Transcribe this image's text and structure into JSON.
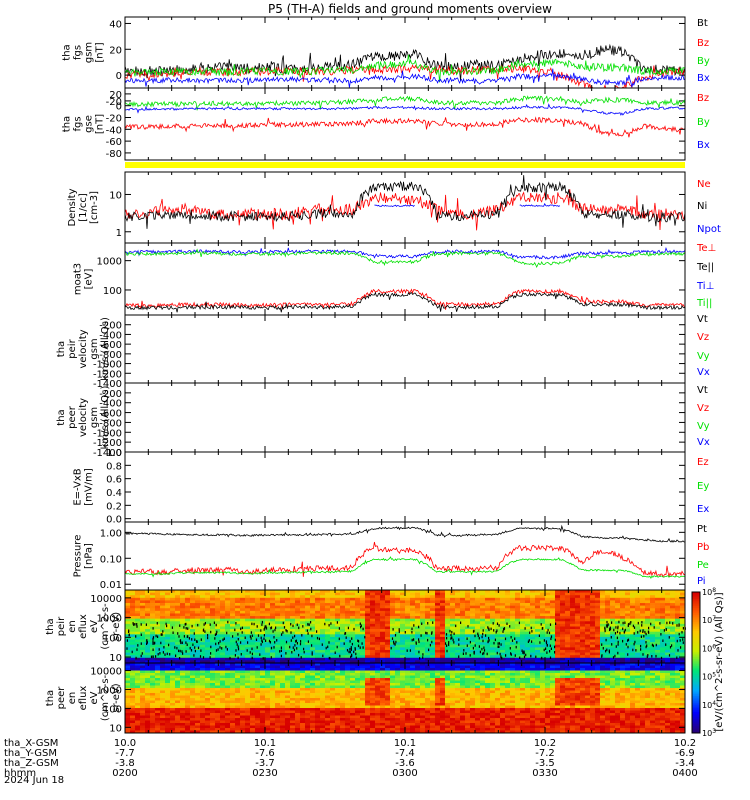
{
  "title": "P5 (TH-A) fields and ground moments overview",
  "date": "2024 Jun 18",
  "colors": {
    "black": "#000000",
    "red": "#ff0000",
    "green": "#00e000",
    "blue": "#0000ff",
    "yellow": "#ffff00"
  },
  "chart_data": [
    {
      "type": "line",
      "id": "fgs_gsm",
      "ylabel": [
        "tha",
        "fgs",
        "gsm",
        "[nT]"
      ],
      "yscale": "linear",
      "ylim": [
        -10,
        45
      ],
      "yticks": [
        40,
        20,
        0,
        -20
      ],
      "yticklabels": [
        "40",
        "20",
        "0",
        "-20"
      ],
      "series": [
        {
          "name": "Bt",
          "color": "black",
          "base": [
            3,
            3,
            3,
            5,
            6,
            6,
            5,
            6,
            4,
            6,
            6,
            8,
            14,
            15,
            16,
            7,
            6,
            8,
            7,
            13,
            16,
            17,
            15,
            20,
            18,
            4,
            4,
            4
          ],
          "noise": 4
        },
        {
          "name": "Bz",
          "color": "red",
          "base": [
            0,
            1,
            1,
            2,
            2,
            2,
            2,
            3,
            3,
            3,
            3,
            4,
            4,
            5,
            5,
            4,
            3,
            4,
            5,
            5,
            3,
            0,
            -6,
            -14,
            -10,
            -2,
            2,
            2
          ],
          "noise": 3
        },
        {
          "name": "By",
          "color": "green",
          "base": [
            2,
            2,
            3,
            3,
            3,
            2,
            3,
            3,
            3,
            3,
            4,
            4,
            7,
            8,
            9,
            3,
            3,
            3,
            4,
            9,
            9,
            10,
            6,
            6,
            6,
            3,
            3,
            3
          ],
          "noise": 3
        },
        {
          "name": "Bx",
          "color": "blue",
          "base": [
            -4,
            -4,
            -4,
            -4,
            -4,
            -4,
            -4,
            -3,
            -3,
            -4,
            -4,
            -4,
            -2,
            -2,
            -1,
            -4,
            -4,
            -5,
            -4,
            -1,
            -1,
            -1,
            -3,
            -6,
            -6,
            -3,
            -2,
            -2
          ],
          "noise": 2
        }
      ]
    },
    {
      "type": "line",
      "id": "fgs_gse",
      "ylabel": [
        "tha",
        "fgs",
        "gse",
        "[nT]"
      ],
      "yscale": "linear",
      "ylim": [
        -92,
        30
      ],
      "yticks": [
        20,
        0,
        -20,
        -40,
        -60,
        -80
      ],
      "yticklabels": [
        "20",
        "0",
        "-20",
        "-40",
        "-60",
        "-80"
      ],
      "series": [
        {
          "name": "Bz",
          "color": "red",
          "base": [
            -36,
            -36,
            -35,
            -34,
            -34,
            -34,
            -33,
            -32,
            -32,
            -32,
            -31,
            -30,
            -26,
            -26,
            -26,
            -30,
            -32,
            -32,
            -30,
            -24,
            -24,
            -25,
            -30,
            -46,
            -50,
            -34,
            -38,
            -42
          ],
          "noise": 4
        },
        {
          "name": "By",
          "color": "green",
          "base": [
            2,
            2,
            3,
            3,
            4,
            4,
            4,
            4,
            4,
            5,
            5,
            7,
            10,
            12,
            12,
            5,
            5,
            5,
            5,
            12,
            12,
            12,
            6,
            10,
            10,
            5,
            5,
            5
          ],
          "noise": 4
        },
        {
          "name": "Bx",
          "color": "blue",
          "base": [
            -6,
            -6,
            -6,
            -5,
            -5,
            -5,
            -5,
            -5,
            -5,
            -5,
            -5,
            -5,
            -3,
            -3,
            -3,
            -5,
            -5,
            -5,
            -5,
            -3,
            -3,
            -3,
            -5,
            -12,
            -14,
            -5,
            -4,
            -4
          ],
          "noise": 2
        }
      ]
    },
    {
      "type": "line",
      "id": "density",
      "ylabel": [
        "Density",
        "[1/cc]",
        "[cm-3]"
      ],
      "yscale": "log",
      "ylim": [
        0.5,
        40
      ],
      "yticks": [
        10,
        1
      ],
      "yticklabels": [
        "10",
        "1"
      ],
      "series": [
        {
          "name": "Ne",
          "color": "red",
          "base": [
            3,
            3,
            4,
            4,
            3,
            3,
            3,
            3,
            3,
            4,
            4,
            4,
            8,
            8,
            7,
            4,
            3,
            3,
            4,
            8,
            8,
            8,
            4,
            4,
            4,
            3,
            3,
            3
          ],
          "noise": 0.35
        },
        {
          "name": "Ni",
          "color": "black",
          "base": [
            2.5,
            2.5,
            2.8,
            3,
            2.6,
            2.6,
            2.5,
            2.5,
            2.6,
            3,
            3,
            3,
            15,
            16,
            18,
            3,
            2.6,
            2.8,
            3,
            15,
            15,
            16,
            3,
            3,
            3,
            2.5,
            2.5,
            2.5
          ],
          "noise": 0.3
        },
        {
          "name": "Npot",
          "color": "blue",
          "base": [
            null,
            null,
            null,
            null,
            null,
            null,
            null,
            null,
            null,
            null,
            null,
            null,
            5,
            5,
            5,
            null,
            null,
            null,
            null,
            5,
            5,
            5,
            null,
            null,
            null,
            null,
            null,
            null
          ],
          "noise": 0.05
        }
      ]
    },
    {
      "type": "line",
      "id": "moats",
      "ylabel": [
        "moat3",
        "[eV]"
      ],
      "yscale": "log",
      "ylim": [
        14,
        4000
      ],
      "yticks": [
        1000,
        100
      ],
      "yticklabels": [
        "1000",
        "100"
      ],
      "series": [
        {
          "name": "Te⊥",
          "color": "red",
          "base": [
            30,
            30,
            30,
            32,
            32,
            32,
            30,
            30,
            32,
            32,
            32,
            34,
            90,
            90,
            90,
            34,
            32,
            32,
            34,
            90,
            90,
            90,
            40,
            40,
            40,
            30,
            30,
            30
          ],
          "noise": 0.15
        },
        {
          "name": "Te||",
          "color": "black",
          "base": [
            25,
            25,
            25,
            26,
            26,
            26,
            25,
            25,
            26,
            26,
            26,
            28,
            70,
            70,
            70,
            28,
            26,
            26,
            28,
            70,
            70,
            70,
            32,
            32,
            32,
            25,
            25,
            25
          ],
          "noise": 0.15
        },
        {
          "name": "Ti⊥",
          "color": "blue",
          "base": [
            2000,
            2000,
            2000,
            2100,
            2100,
            2000,
            2000,
            2000,
            2000,
            2100,
            2100,
            2100,
            1400,
            1400,
            1400,
            2000,
            2100,
            2000,
            2100,
            1300,
            1300,
            1300,
            1800,
            1800,
            1800,
            2000,
            2000,
            2000
          ],
          "noise": 0.12
        },
        {
          "name": "Ti||",
          "color": "green",
          "base": [
            1700,
            1700,
            1700,
            1800,
            1800,
            1700,
            1700,
            1700,
            1700,
            1800,
            1800,
            1800,
            900,
            900,
            900,
            1700,
            1800,
            1700,
            1800,
            800,
            800,
            800,
            1400,
            1400,
            1400,
            1700,
            1700,
            1700
          ],
          "noise": 0.12
        }
      ]
    },
    {
      "type": "line",
      "id": "peir_velocity",
      "ylabel": [
        "tha",
        "peir",
        "velocity",
        "gsm",
        "km/s (All Qs)"
      ],
      "yscale": "linear",
      "ylim": [
        -1400,
        0
      ],
      "yticks": [
        -200,
        -400,
        -600,
        -800,
        -1000,
        -1200,
        -1400
      ],
      "yticklabels": [
        "-200",
        "-400",
        "-600",
        "-800",
        "-1000",
        "-1200",
        "-1400"
      ],
      "series": [
        {
          "name": "Vt",
          "color": "black"
        },
        {
          "name": "Vz",
          "color": "red"
        },
        {
          "name": "Vy",
          "color": "green"
        },
        {
          "name": "Vx",
          "color": "blue"
        }
      ]
    },
    {
      "type": "line",
      "id": "peer_velocity",
      "ylabel": [
        "tha",
        "peer",
        "velocity",
        "gsm",
        "km/s (All Qs)"
      ],
      "yscale": "linear",
      "ylim": [
        -1400,
        0
      ],
      "yticks": [
        -200,
        -400,
        -600,
        -800,
        -1000,
        -1200,
        -1400
      ],
      "yticklabels": [
        "-200",
        "-400",
        "-600",
        "-800",
        "-1000",
        "-1200",
        "-1400"
      ],
      "series": [
        {
          "name": "Vt",
          "color": "black"
        },
        {
          "name": "Vz",
          "color": "red"
        },
        {
          "name": "Vy",
          "color": "green"
        },
        {
          "name": "Vx",
          "color": "blue"
        }
      ]
    },
    {
      "type": "line",
      "id": "efield",
      "ylabel": [
        "E=-VxB",
        "[mV/m]"
      ],
      "yscale": "linear",
      "ylim": [
        -0.05,
        1.0
      ],
      "yticks": [
        1.0,
        0.8,
        0.6,
        0.4,
        0.2,
        0.0
      ],
      "yticklabels": [
        "1.0",
        "0.8",
        "0.6",
        "0.4",
        "0.2",
        "0.0"
      ],
      "series": [
        {
          "name": "Ez",
          "color": "red"
        },
        {
          "name": "Ey",
          "color": "green"
        },
        {
          "name": "Ex",
          "color": "blue"
        }
      ]
    },
    {
      "type": "line",
      "id": "pressure",
      "ylabel": [
        "Pressure",
        "[nPa]"
      ],
      "yscale": "log",
      "ylim": [
        0.006,
        2.5
      ],
      "yticks": [
        1.0,
        0.1,
        0.01
      ],
      "yticklabels": [
        "1.00",
        "0.10",
        "0.01"
      ],
      "series": [
        {
          "name": "Pt",
          "color": "black",
          "base": [
            0.9,
            0.9,
            0.85,
            0.8,
            0.8,
            0.8,
            0.75,
            0.8,
            0.8,
            0.8,
            0.85,
            0.85,
            1.4,
            1.5,
            1.5,
            0.8,
            0.75,
            0.8,
            0.85,
            1.4,
            1.4,
            1.4,
            0.7,
            0.6,
            0.6,
            0.5,
            0.45,
            0.45
          ],
          "noise": 0.08
        },
        {
          "name": "Pb",
          "color": "red",
          "base": [
            0.03,
            0.03,
            0.03,
            0.035,
            0.035,
            0.035,
            0.03,
            0.035,
            0.035,
            0.04,
            0.04,
            0.045,
            0.25,
            0.2,
            0.2,
            0.04,
            0.04,
            0.04,
            0.045,
            0.25,
            0.25,
            0.25,
            0.06,
            0.2,
            0.1,
            0.03,
            0.025,
            0.025
          ],
          "noise": 0.25
        },
        {
          "name": "Pe",
          "color": "green",
          "base": [
            0.025,
            0.025,
            0.025,
            0.028,
            0.028,
            0.028,
            0.025,
            0.028,
            0.028,
            0.03,
            0.03,
            0.032,
            0.09,
            0.09,
            0.09,
            0.03,
            0.03,
            0.03,
            0.032,
            0.09,
            0.09,
            0.09,
            0.035,
            0.035,
            0.035,
            0.02,
            0.02,
            0.02
          ],
          "noise": 0.08
        },
        {
          "name": "Pi",
          "color": "blue"
        }
      ]
    },
    {
      "type": "heatmap",
      "id": "peir_eflux",
      "ylabel": [
        "tha",
        "peir",
        "en",
        "eflux",
        "eV",
        "(cm^2-s-",
        "sr-eV)"
      ],
      "yscale": "log",
      "ylim": [
        5,
        25000
      ],
      "yticks": [
        10000,
        1000,
        100,
        10
      ],
      "yticklabels": [
        "10000",
        "1000",
        "100",
        "10"
      ]
    },
    {
      "type": "heatmap",
      "id": "peer_eflux",
      "ylabel": [
        "tha",
        "peer",
        "en",
        "eflux",
        "eV",
        "(cm^2-s-",
        "sr-eV)"
      ],
      "yscale": "log",
      "ylim": [
        5,
        25000
      ],
      "yticks": [
        10000,
        1000,
        100,
        10
      ],
      "yticklabels": [
        "10000",
        "1000",
        "100",
        "10"
      ]
    }
  ],
  "colorbar": {
    "label": "[eV/(cm^2-s-sr-eV) (All Qs)]",
    "range_exponent": [
      3,
      8
    ],
    "tick_exponents": [
      8,
      7,
      6,
      5,
      4,
      3
    ]
  },
  "xaxis": {
    "rows": [
      {
        "label": "tha_X-GSM",
        "values": [
          "10.0",
          "10.1",
          "10.1",
          "10.2",
          "10.2"
        ]
      },
      {
        "label": "tha_Y-GSM",
        "values": [
          "-7.7",
          "-7.6",
          "-7.4",
          "-7.2",
          "-6.9"
        ]
      },
      {
        "label": "tha_Z-GSM",
        "values": [
          "-3.8",
          "-3.7",
          "-3.6",
          "-3.5",
          "-3.4"
        ]
      },
      {
        "label": "hhmm",
        "values": [
          "0200",
          "0230",
          "0300",
          "0330",
          "0400"
        ]
      }
    ]
  }
}
